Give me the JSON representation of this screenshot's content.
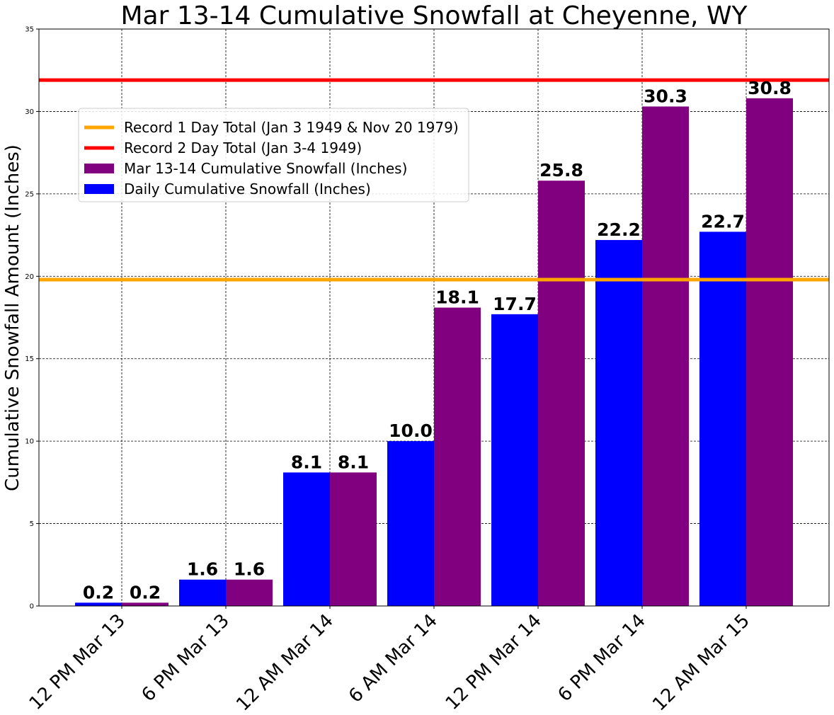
{
  "chart_data": {
    "type": "bar",
    "title": "Mar 13-14 Cumulative Snowfall at Cheyenne, WY",
    "xlabel": "",
    "ylabel": "Cumulative Snowfall Amount (Inches)",
    "ylim": [
      0,
      35
    ],
    "yticks": [
      0,
      5,
      10,
      15,
      20,
      25,
      30,
      35
    ],
    "categories": [
      "12 PM Mar 13",
      "6 PM Mar 13",
      "12 AM Mar 14",
      "6 AM Mar 14",
      "12 PM Mar 14",
      "6 PM Mar 14",
      "12 AM Mar 15"
    ],
    "series": [
      {
        "name": "Daily Cumulative Snowfall (Inches)",
        "color": "#0000ff",
        "values": [
          0.2,
          1.6,
          8.1,
          10.0,
          17.7,
          22.2,
          22.7
        ],
        "labels": [
          "0.2",
          "1.6",
          "8.1",
          "10.0",
          "17.7",
          "22.2",
          "22.7"
        ]
      },
      {
        "name": "Mar 13-14 Cumulative Snowfall (Inches)",
        "color": "#800080",
        "values": [
          0.2,
          1.6,
          8.1,
          18.1,
          25.8,
          30.3,
          30.8
        ],
        "labels": [
          "0.2",
          "1.6",
          "8.1",
          "18.1",
          "25.8",
          "30.3",
          "30.8"
        ]
      }
    ],
    "reference_lines": [
      {
        "name": "Record 1 Day Total (Jan 3 1949 & Nov 20 1979)",
        "value": 19.8,
        "color": "#ffa500"
      },
      {
        "name": "Record 2 Day Total (Jan 3-4 1949)",
        "value": 31.9,
        "color": "#ff0000"
      }
    ],
    "grid": true,
    "legend_position": "upper-left",
    "legend_order": [
      "Record 1 Day Total (Jan 3 1949 & Nov 20 1979)",
      "Record 2 Day Total (Jan 3-4 1949)",
      "Mar 13-14 Cumulative Snowfall (Inches)",
      "Daily Cumulative Snowfall (Inches)"
    ]
  }
}
